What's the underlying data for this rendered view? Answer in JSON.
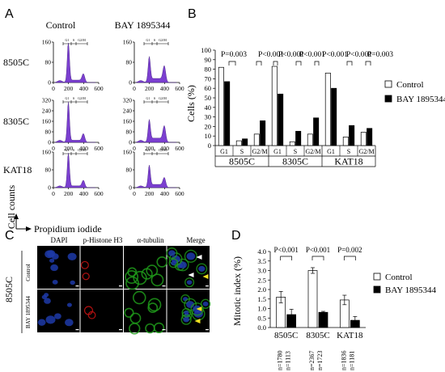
{
  "panelA": {
    "letter": "A",
    "col_headers": [
      "Control",
      "BAY 1895344"
    ],
    "rows": [
      {
        "label": "8505C",
        "yticks": [
          "0",
          "80",
          "160"
        ],
        "xticks": [
          "0",
          "200",
          "400",
          "600"
        ]
      },
      {
        "label": "8305C",
        "yticks": [
          "0",
          "80",
          "160",
          "240",
          "320"
        ],
        "xticks": [
          "0",
          "200",
          "400",
          "600"
        ]
      },
      {
        "label": "KAT18",
        "yticks": [
          "0",
          "80",
          "160"
        ],
        "xticks": [
          "0",
          "200",
          "400",
          "600"
        ]
      }
    ],
    "gate_labels": [
      "G1",
      "S",
      "G2/M"
    ],
    "ylabel": "Cell counts",
    "xlabel": "Propidium iodide",
    "colors": {
      "hist": "#7b3fd0",
      "hist_edge": "#3d1a7a"
    }
  },
  "panelB": {
    "letter": "B",
    "pvalues": [
      "P=0.003",
      "P<0.001",
      "P<0.001",
      "P<0.001",
      "P<0.001",
      "P<0.001",
      "P=0.003"
    ],
    "legend": [
      "Control",
      "BAY 1895344"
    ]
  },
  "panelC": {
    "letter": "C",
    "channels": [
      "DAPI",
      "p-Histone H3",
      "α-tubulin",
      "Merge"
    ],
    "cell_line": "8505C",
    "row_labels": [
      "Control",
      "BAY 1895344"
    ]
  },
  "panelD": {
    "letter": "D",
    "pvalues": [
      "P<0.001",
      "P<0.001",
      "P=0.002"
    ],
    "n_labels": [
      [
        "n=1780",
        "n=1113"
      ],
      [
        "n=2367",
        "n=1723"
      ],
      [
        "n=1836",
        "n=1181"
      ]
    ],
    "legend": [
      "Control",
      "BAY 1895344"
    ]
  },
  "chart_data": [
    {
      "type": "bar",
      "title": "",
      "ylabel": "Cells (%)",
      "ylim": [
        0,
        100
      ],
      "yticks": [
        0,
        10,
        20,
        30,
        40,
        50,
        60,
        70,
        80,
        90,
        100
      ],
      "groups": [
        "8505C",
        "8305C",
        "KAT18"
      ],
      "categories": [
        "G1",
        "S",
        "G2/M"
      ],
      "series": [
        {
          "name": "Control",
          "color": "#ffffff",
          "values": [
            [
              82,
              5,
              12
            ],
            [
              83,
              4,
              12
            ],
            [
              76,
              9,
              14
            ]
          ]
        },
        {
          "name": "BAY 1895344",
          "color": "#000000",
          "values": [
            [
              67,
              7,
              26
            ],
            [
              54,
              15,
              29
            ],
            [
              60,
              21,
              18
            ]
          ]
        }
      ],
      "legend_position": "right"
    },
    {
      "type": "bar",
      "title": "",
      "ylabel": "Mitotic index (%)",
      "ylim": [
        0,
        4.0
      ],
      "yticks": [
        0.0,
        0.5,
        1.0,
        1.5,
        2.0,
        2.5,
        3.0,
        3.5,
        4.0
      ],
      "categories": [
        "8505C",
        "8305C",
        "KAT18"
      ],
      "series": [
        {
          "name": "Control",
          "color": "#ffffff",
          "values": [
            1.6,
            3.0,
            1.45
          ],
          "errors": [
            0.3,
            0.15,
            0.25
          ]
        },
        {
          "name": "BAY 1895344",
          "color": "#000000",
          "values": [
            0.68,
            0.8,
            0.38
          ],
          "errors": [
            0.28,
            0.05,
            0.2
          ]
        }
      ],
      "legend_position": "right"
    }
  ]
}
